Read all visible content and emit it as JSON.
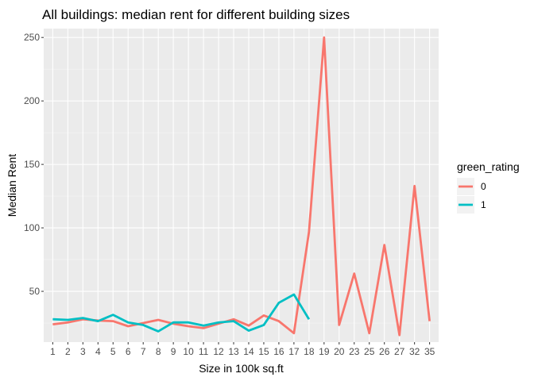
{
  "chart_data": {
    "type": "line",
    "title": "All buildings: median rent for different building sizes",
    "xlabel": "Size in 100k sq.ft",
    "ylabel": "Median Rent",
    "categories": [
      "1",
      "2",
      "3",
      "4",
      "5",
      "6",
      "7",
      "8",
      "9",
      "10",
      "11",
      "12",
      "13",
      "14",
      "15",
      "16",
      "17",
      "18",
      "19",
      "20",
      "23",
      "25",
      "26",
      "27",
      "32",
      "35"
    ],
    "ylim": [
      10,
      257
    ],
    "yticks": [
      50,
      100,
      150,
      200,
      250
    ],
    "grid": true,
    "legend": {
      "title": "green_rating",
      "placement": "right"
    },
    "series": [
      {
        "name": "0",
        "color": "#F8766D",
        "values": [
          24,
          25.5,
          28,
          27,
          26.5,
          22.5,
          25,
          27.5,
          24.5,
          22.5,
          21,
          24.5,
          28,
          23,
          31,
          26.5,
          17,
          97,
          250,
          23.5,
          64,
          17,
          86.5,
          15.5,
          133,
          26.5
        ]
      },
      {
        "name": "1",
        "color": "#00BFC4",
        "values": [
          28,
          27.5,
          29,
          26.5,
          31.5,
          25.5,
          23.5,
          18.5,
          25.5,
          25.5,
          23,
          25.5,
          26.5,
          19,
          23.5,
          41,
          47.5,
          28,
          null,
          null,
          null,
          null,
          null,
          null,
          null,
          null
        ]
      }
    ]
  }
}
